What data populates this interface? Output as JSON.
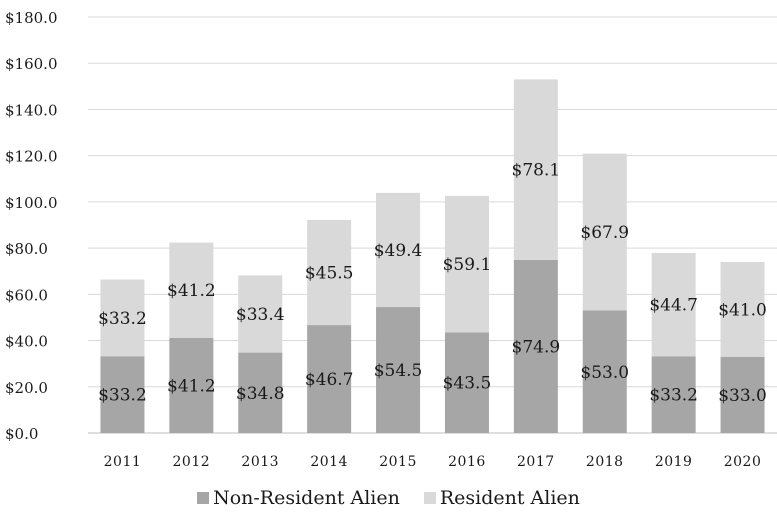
{
  "chart_data": {
    "type": "bar",
    "stacked": true,
    "categories": [
      "2011",
      "2012",
      "2013",
      "2014",
      "2015",
      "2016",
      "2017",
      "2018",
      "2019",
      "2020"
    ],
    "series": [
      {
        "name": "Non-Resident Alien",
        "color": "#a6a6a6",
        "values": [
          33.2,
          41.2,
          34.8,
          46.7,
          54.5,
          43.5,
          74.9,
          53.0,
          33.2,
          33.0
        ],
        "labels": [
          "$33.2",
          "$41.2",
          "$34.8",
          "$46.7",
          "$54.5",
          "$43.5",
          "$74.9",
          "$53.0",
          "$33.2",
          "$33.0"
        ]
      },
      {
        "name": "Resident Alien",
        "color": "#d9d9d9",
        "values": [
          33.2,
          41.2,
          33.4,
          45.5,
          49.4,
          59.1,
          78.1,
          67.9,
          44.7,
          41.0
        ],
        "labels": [
          "$33.2",
          "$41.2",
          "$33.4",
          "$45.5",
          "$49.4",
          "$59.1",
          "$78.1",
          "$67.9",
          "$44.7",
          "$41.0"
        ]
      }
    ],
    "ylim": [
      0,
      180
    ],
    "yticks": [
      0,
      20,
      40,
      60,
      80,
      100,
      120,
      140,
      160,
      180
    ],
    "ytick_labels": [
      "$0.0",
      "$20.0",
      "$40.0",
      "$60.0",
      "$80.0",
      "$100.0",
      "$120.0",
      "$140.0",
      "$160.0",
      "$180.0"
    ],
    "grid": true,
    "legend_position": "bottom"
  }
}
